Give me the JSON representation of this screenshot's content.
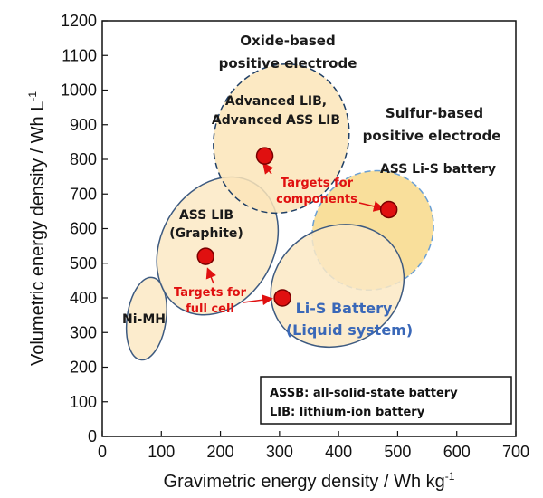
{
  "chart_data": {
    "type": "scatter",
    "xlabel": "Gravimetric energy density / Wh kg",
    "xlabel_sup": "-1",
    "ylabel": "Volumetric energy density / Wh L",
    "ylabel_sup": "-1",
    "xlim": [
      0,
      700
    ],
    "ylim": [
      0,
      1200
    ],
    "xticks": [
      0,
      100,
      200,
      300,
      400,
      500,
      600,
      700
    ],
    "yticks": [
      0,
      100,
      200,
      300,
      400,
      500,
      600,
      700,
      800,
      900,
      1000,
      1100,
      1200
    ],
    "grid": false,
    "points": [
      {
        "x": 175,
        "y": 520
      },
      {
        "x": 305,
        "y": 400
      },
      {
        "x": 275,
        "y": 810
      },
      {
        "x": 485,
        "y": 655
      }
    ],
    "point_color": "#e01010",
    "regions": [
      {
        "label": "Ni-MH",
        "cx": 75,
        "cy": 340,
        "rx": 33,
        "ry": 120,
        "angle": 8,
        "fill": "#fbe9c4",
        "stroke": "#3d5a80",
        "dashed": false
      },
      {
        "label_lines": [
          "ASS LIB",
          "(Graphite)"
        ],
        "cx": 195,
        "cy": 550,
        "rx": 95,
        "ry": 210,
        "angle": 30,
        "fill": "#fbe9c4",
        "stroke": "#3d5a80",
        "dashed": false
      },
      {
        "label_lines": [
          "Oxide-based",
          "positive electrode"
        ],
        "cx": 303,
        "cy": 860,
        "rx": 113,
        "ry": 218,
        "angle": 20,
        "fill": "#fbe5b8",
        "stroke": "#1f3f66",
        "dashed": true
      },
      {
        "label_lines": [
          "Sulfur-based",
          "positive electrode"
        ],
        "cx": 458,
        "cy": 595,
        "rx": 98,
        "ry": 180,
        "angle": 52,
        "fill": "#f8d98a",
        "stroke": "#6a9fd4",
        "dashed": true
      },
      {
        "label_lines": [
          "Li-S Battery",
          "(Liquid system)"
        ],
        "cx": 398,
        "cy": 435,
        "rx": 100,
        "ry": 198,
        "angle": 62,
        "fill": "#fbe9c4",
        "stroke": "#3d5a80",
        "dashed": false
      }
    ],
    "annotations": {
      "oxide_label": [
        "Oxide-based",
        "positive electrode"
      ],
      "advanced_label": [
        "Advanced LIB,",
        "Advanced ASS LIB"
      ],
      "sulfur_label": [
        "Sulfur-based",
        "positive electrode"
      ],
      "ass_lis_label": "ASS Li-S battery",
      "ass_lib_label": [
        "ASS LIB",
        "(Graphite)"
      ],
      "nimh_label": "Ni-MH",
      "targets_components": [
        "Targets for",
        "components"
      ],
      "targets_fullcell": [
        "Targets for",
        "full cell"
      ],
      "lis_label": [
        "Li-S Battery",
        "(Liquid system)"
      ]
    },
    "legend_box": [
      "ASSB: all-solid-state battery",
      "LIB: lithium-ion battery"
    ]
  }
}
